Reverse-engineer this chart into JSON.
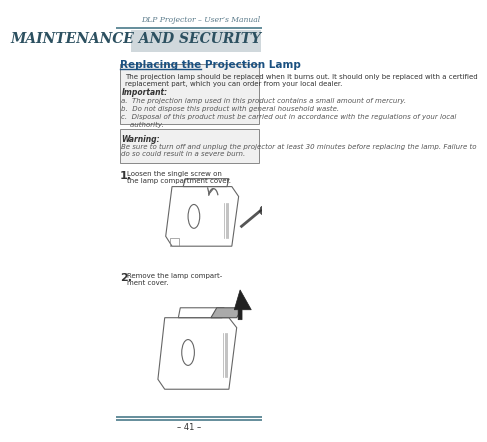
{
  "page_bg": "#ffffff",
  "header_italic": "DLP Projector – User’s Manual",
  "header_color": "#5a7a8a",
  "title_section": "MAINTENANCE AND SECURITY",
  "title_bg": "#d0d8dc",
  "title_color": "#2c5060",
  "section_heading": "Replacing the Projection Lamp",
  "section_heading_color": "#1a5080",
  "body_text": "The projection lamp should be replaced when it burns out. It should only be replaced with a certified\nreplacement part, which you can order from your local dealer.",
  "important_label": "Important:",
  "important_a": "a.  The projection lamp used in this product contains a small amount of mercury.",
  "important_b": "b.  Do not dispose this product with general household waste.",
  "important_c": "c.  Disposal of this product must be carried out in accordance with the regulations of your local\n    authority.",
  "important_box_color": "#f0f0f0",
  "important_border": "#888888",
  "warning_label": "Warning:",
  "warning_text": "Be sure to turn off and unplug the projector at least 30 minutes before replacing the lamp. Failure to\ndo so could result in a severe burn.",
  "warning_box_color": "#f0f0f0",
  "warning_border": "#888888",
  "step1_num": "1.",
  "step1_text": "Loosen the single screw on\nthe lamp compartment cover.",
  "step2_num": "2.",
  "step2_text": "Remove the lamp compart-\nment cover.",
  "footer_text": "– 41 –",
  "footer_line_color": "#4a7a8a",
  "text_color": "#333333",
  "italic_text_color": "#555555"
}
